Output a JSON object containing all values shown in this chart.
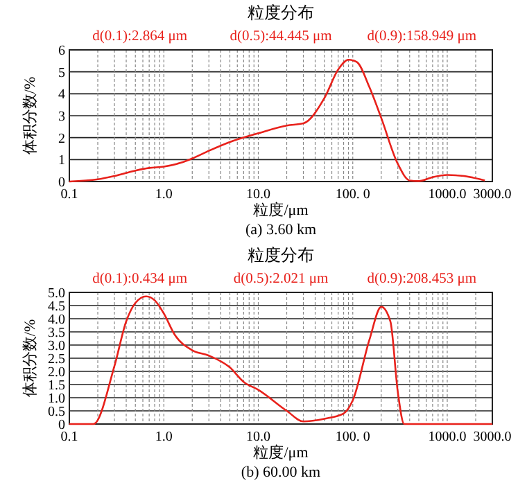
{
  "chart_data": [
    {
      "type": "line",
      "title": "粒度分布",
      "xlabel": "粒度/μm",
      "ylabel": "体积分数/%",
      "annotations": [
        "d(0.1):2.864 μm",
        "d(0.5):44.445 μm",
        "d(0.9):158.949 μm",
        "(a) 3.60 km"
      ],
      "x": [
        0.1,
        0.2,
        0.3,
        0.5,
        0.7,
        1.0,
        1.5,
        2,
        3,
        5,
        10,
        20,
        30,
        50,
        70,
        90,
        110,
        150,
        200,
        300,
        400,
        500,
        700,
        1000,
        1500,
        2500
      ],
      "series": [
        {
          "color": "#e8211b",
          "values": [
            0,
            0.1,
            0.25,
            0.5,
            0.62,
            0.68,
            0.85,
            1.05,
            1.4,
            1.8,
            2.2,
            2.55,
            2.65,
            3.8,
            5.1,
            5.55,
            5.45,
            4.3,
            2.9,
            0.8,
            0.05,
            0.02,
            0.2,
            0.3,
            0.25,
            0.05
          ]
        }
      ],
      "xlim": [
        0.1,
        3000
      ],
      "ylim": [
        0,
        6
      ],
      "log": "x",
      "grid": true,
      "marker": "none",
      "line_style": "solid",
      "xticks": [
        0.1,
        {
          "value": 0.2,
          "label": null
        },
        {
          "value": 0.3,
          "label": null
        },
        {
          "value": 0.4,
          "label": null
        },
        {
          "value": 0.5,
          "label": null
        },
        {
          "value": 0.6,
          "label": null
        },
        {
          "value": 0.7,
          "label": null
        },
        {
          "value": 0.8,
          "label": null
        },
        {
          "value": 0.9,
          "label": null
        },
        {
          "value": 1,
          "label": "1.0"
        },
        {
          "value": 2,
          "label": null
        },
        {
          "value": 3,
          "label": null
        },
        {
          "value": 4,
          "label": null
        },
        {
          "value": 5,
          "label": null
        },
        {
          "value": 6,
          "label": null
        },
        {
          "value": 7,
          "label": null
        },
        {
          "value": 8,
          "label": null
        },
        {
          "value": 9,
          "label": null
        },
        {
          "value": 10,
          "label": "10.0"
        },
        {
          "value": 20,
          "label": null
        },
        {
          "value": 30,
          "label": null
        },
        {
          "value": 40,
          "label": null
        },
        {
          "value": 50,
          "label": null
        },
        {
          "value": 60,
          "label": null
        },
        {
          "value": 70,
          "label": null
        },
        {
          "value": 80,
          "label": null
        },
        {
          "value": 90,
          "label": null
        },
        {
          "value": 100,
          "label": "100. 0"
        },
        {
          "value": 200,
          "label": null
        },
        {
          "value": 300,
          "label": null
        },
        {
          "value": 400,
          "label": null
        },
        {
          "value": 500,
          "label": null
        },
        {
          "value": 600,
          "label": null
        },
        {
          "value": 700,
          "label": null
        },
        {
          "value": 800,
          "label": null
        },
        {
          "value": 900,
          "label": null
        },
        {
          "value": 1000,
          "label": "1000.0"
        },
        {
          "value": 2000,
          "label": null
        },
        {
          "value": 3000,
          "label": "3000.0"
        }
      ],
      "yticks": [
        0,
        1,
        2,
        3,
        4,
        5,
        6
      ]
    },
    {
      "type": "line",
      "title": "粒度分布",
      "xlabel": "粒度/μm",
      "ylabel": "体积分数/%",
      "annotations": [
        "d(0.1):0.434 μm",
        "d(0.5):2.021 μm",
        "d(0.9):208.453 μm",
        "(b) 60.00 km"
      ],
      "x": [
        0.1,
        0.18,
        0.3,
        0.4,
        0.5,
        0.65,
        0.8,
        1.0,
        1.3,
        2,
        3,
        5,
        7,
        10,
        20,
        30,
        50,
        80,
        100,
        150,
        200,
        250,
        300,
        350,
        3000
      ],
      "series": [
        {
          "color": "#e8211b",
          "values": [
            0,
            0,
            2.2,
            3.9,
            4.6,
            4.85,
            4.7,
            4.2,
            3.4,
            2.8,
            2.6,
            2.15,
            1.6,
            1.3,
            0.5,
            0.1,
            0.2,
            0.4,
            0.9,
            3.2,
            4.45,
            3.9,
            1.2,
            0,
            0
          ]
        }
      ],
      "xlim": [
        0.1,
        3000
      ],
      "ylim": [
        0,
        5
      ],
      "log": "x",
      "grid": true,
      "marker": "none",
      "line_style": "solid",
      "xticks": [
        0.1,
        {
          "value": 0.2,
          "label": null
        },
        {
          "value": 0.3,
          "label": null
        },
        {
          "value": 0.4,
          "label": null
        },
        {
          "value": 0.5,
          "label": null
        },
        {
          "value": 0.6,
          "label": null
        },
        {
          "value": 0.7,
          "label": null
        },
        {
          "value": 0.8,
          "label": null
        },
        {
          "value": 0.9,
          "label": null
        },
        {
          "value": 1,
          "label": "1.0"
        },
        {
          "value": 2,
          "label": null
        },
        {
          "value": 3,
          "label": null
        },
        {
          "value": 4,
          "label": null
        },
        {
          "value": 5,
          "label": null
        },
        {
          "value": 6,
          "label": null
        },
        {
          "value": 7,
          "label": null
        },
        {
          "value": 8,
          "label": null
        },
        {
          "value": 9,
          "label": null
        },
        {
          "value": 10,
          "label": "10.0"
        },
        {
          "value": 20,
          "label": null
        },
        {
          "value": 30,
          "label": null
        },
        {
          "value": 40,
          "label": null
        },
        {
          "value": 50,
          "label": null
        },
        {
          "value": 60,
          "label": null
        },
        {
          "value": 70,
          "label": null
        },
        {
          "value": 80,
          "label": null
        },
        {
          "value": 90,
          "label": null
        },
        {
          "value": 100,
          "label": "100. 0"
        },
        {
          "value": 200,
          "label": null
        },
        {
          "value": 300,
          "label": null
        },
        {
          "value": 400,
          "label": null
        },
        {
          "value": 500,
          "label": null
        },
        {
          "value": 600,
          "label": null
        },
        {
          "value": 700,
          "label": null
        },
        {
          "value": 800,
          "label": null
        },
        {
          "value": 900,
          "label": null
        },
        {
          "value": 1000,
          "label": "1000.0"
        },
        {
          "value": 2000,
          "label": null
        },
        {
          "value": 3000,
          "label": "3000.0"
        }
      ],
      "yticks": [
        0,
        {
          "value": 0.5,
          "label": "0.5"
        },
        {
          "value": 1,
          "label": "1.0"
        },
        {
          "value": 1.5,
          "label": "1.5"
        },
        {
          "value": 2,
          "label": "2.0"
        },
        {
          "value": 2.5,
          "label": "2.5"
        },
        {
          "value": 3,
          "label": "3.0"
        },
        {
          "value": 3.5,
          "label": "3.5"
        },
        {
          "value": 4,
          "label": "4.0"
        },
        {
          "value": 4.5,
          "label": "4.5"
        },
        {
          "value": 5,
          "label": "5.0"
        }
      ]
    }
  ]
}
